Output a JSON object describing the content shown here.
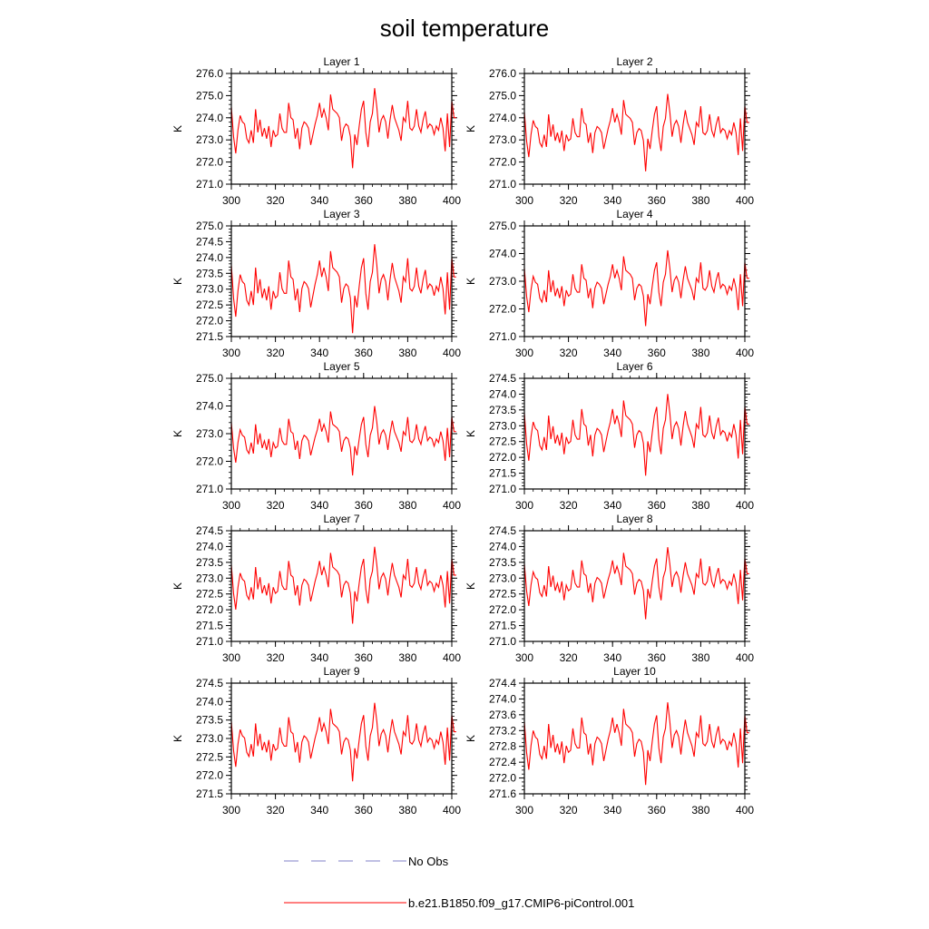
{
  "title": "soil temperature",
  "colors": {
    "model": "#ff0000",
    "obs": "#8080c8",
    "axes": "#000000"
  },
  "chart_data": {
    "type": "line",
    "title": "soil temperature",
    "ylabel": "K",
    "xlim": [
      300,
      400
    ],
    "xticks": [
      300,
      320,
      340,
      360,
      380,
      400
    ],
    "legend": {
      "placement": "bottom",
      "entries": [
        {
          "name": "No Obs",
          "style": "dashed"
        },
        {
          "name": "b.e21.B1850.f09_g17.CMIP6-piControl.001",
          "style": "solid"
        }
      ]
    },
    "base_series": [
      4.4,
      3.0,
      2.2,
      3.3,
      4.0,
      3.7,
      3.6,
      2.9,
      2.7,
      3.3,
      2.7,
      4.3,
      3.2,
      3.8,
      3.0,
      3.4,
      2.9,
      3.5,
      2.5,
      3.3,
      3.0,
      3.1,
      4.1,
      3.4,
      3.2,
      3.2,
      4.6,
      3.9,
      3.8,
      2.9,
      3.4,
      2.4,
      3.4,
      3.7,
      3.6,
      3.4,
      2.6,
      3.1,
      3.6,
      4.0,
      4.6,
      3.9,
      4.3,
      3.9,
      3.3,
      5.0,
      4.3,
      4.2,
      4.1,
      3.9,
      2.8,
      3.4,
      3.6,
      3.5,
      3.0,
      1.5,
      3.1,
      2.6,
      3.5,
      4.3,
      4.7,
      3.2,
      2.5,
      3.7,
      4.1,
      5.3,
      4.4,
      3.2,
      3.8,
      4.0,
      3.7,
      2.9,
      3.8,
      4.5,
      3.9,
      3.6,
      3.3,
      2.8,
      3.9,
      3.7,
      4.7,
      3.4,
      3.3,
      3.5,
      4.3,
      3.5,
      3.2,
      3.8,
      4.2,
      3.4,
      3.6,
      3.5,
      3.1,
      3.5,
      3.3,
      3.9,
      3.4,
      2.3,
      4.1,
      2.5,
      4.7,
      3.9,
      3.9
    ],
    "panels": [
      {
        "name": "Layer 1",
        "ylim": [
          271.0,
          276.0
        ],
        "yticks": [
          "276.0",
          "275.0",
          "274.0",
          "273.0",
          "272.0",
          "271.0"
        ],
        "yminor": 0.2,
        "offset": 270.3,
        "scale": 0.95
      },
      {
        "name": "Layer 2",
        "ylim": [
          271.0,
          276.0
        ],
        "yticks": [
          "276.0",
          "275.0",
          "274.0",
          "273.0",
          "272.0",
          "271.0"
        ],
        "yminor": 0.2,
        "offset": 270.2,
        "scale": 0.92
      },
      {
        "name": "Layer 3",
        "ylim": [
          271.5,
          275.0
        ],
        "yticks": [
          "275.0",
          "274.5",
          "274.0",
          "273.5",
          "273.0",
          "272.5",
          "272.0",
          "271.5"
        ],
        "yminor": 0.1,
        "offset": 270.5,
        "scale": 0.74
      },
      {
        "name": "Layer 4",
        "ylim": [
          271.0,
          275.0
        ],
        "yticks": [
          "275.0",
          "274.0",
          "273.0",
          "272.0",
          "271.0"
        ],
        "yminor": 0.2,
        "offset": 270.3,
        "scale": 0.72
      },
      {
        "name": "Layer 5",
        "ylim": [
          271.0,
          275.0
        ],
        "yticks": [
          "275.0",
          "274.0",
          "273.0",
          "272.0",
          "271.0"
        ],
        "yminor": 0.2,
        "offset": 270.5,
        "scale": 0.66
      },
      {
        "name": "Layer 6",
        "ylim": [
          271.0,
          274.5
        ],
        "yticks": [
          "274.5",
          "274.0",
          "273.5",
          "273.0",
          "272.5",
          "272.0",
          "271.5",
          "271.0"
        ],
        "yminor": 0.1,
        "offset": 270.4,
        "scale": 0.68
      },
      {
        "name": "Layer 7",
        "ylim": [
          271.0,
          274.5
        ],
        "yticks": [
          "274.5",
          "274.0",
          "273.5",
          "273.0",
          "272.5",
          "272.0",
          "271.5",
          "271.0"
        ],
        "yminor": 0.1,
        "offset": 270.6,
        "scale": 0.64
      },
      {
        "name": "Layer 8",
        "ylim": [
          271.0,
          274.5
        ],
        "yticks": [
          "274.5",
          "274.0",
          "273.5",
          "273.0",
          "272.5",
          "272.0",
          "271.5",
          "271.0"
        ],
        "yminor": 0.1,
        "offset": 270.8,
        "scale": 0.6
      },
      {
        "name": "Layer 9",
        "ylim": [
          271.5,
          274.5
        ],
        "yticks": [
          "274.5",
          "274.0",
          "273.5",
          "273.0",
          "272.5",
          "272.0",
          "271.5"
        ],
        "yminor": 0.1,
        "offset": 271.0,
        "scale": 0.56
      },
      {
        "name": "Layer 10",
        "ylim": [
          271.6,
          274.4
        ],
        "yticks": [
          "274.4",
          "274.0",
          "273.6",
          "273.2",
          "272.8",
          "272.4",
          "272.0",
          "271.6"
        ],
        "yminor": 0.1,
        "offset": 271.0,
        "scale": 0.55
      }
    ]
  }
}
